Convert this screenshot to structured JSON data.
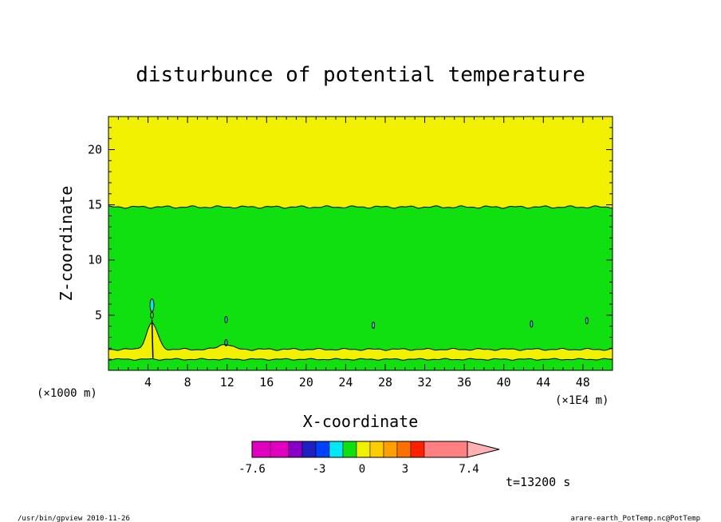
{
  "chart_data": {
    "type": "contour",
    "title": "disturbunce of potential temperature",
    "xlabel": "X-coordinate",
    "ylabel": "Z-coordinate",
    "x_unit_left": "(×1000 m)",
    "x_unit_right": "(×1E4 m)",
    "x_ticks": [
      "4",
      "8",
      "12",
      "16",
      "20",
      "24",
      "28",
      "32",
      "36",
      "40",
      "44",
      "48"
    ],
    "x_tick_values": [
      4,
      8,
      12,
      16,
      20,
      24,
      28,
      32,
      36,
      40,
      44,
      48
    ],
    "y_ticks": [
      "5",
      "10",
      "15",
      "20"
    ],
    "y_tick_values": [
      5,
      10,
      15,
      20
    ],
    "xlim": [
      0,
      51
    ],
    "ylim": [
      0,
      23
    ],
    "time_label": "t=13200 s",
    "colorbar": {
      "colors": [
        "#e000c0",
        "#e000c0",
        "#8800c8",
        "#2020c0",
        "#0040ff",
        "#00e8f8",
        "#10e010",
        "#f0f000",
        "#ffcc00",
        "#ffa000",
        "#ff7000",
        "#ff2000",
        "#ff8080"
      ],
      "tip_color": "#ffb0b0",
      "tick_labels": [
        "-7.6",
        "-3",
        "0",
        "3",
        "7.4"
      ]
    },
    "fields": {
      "upper_band_color": "#f0f000",
      "main_region_color": "#10e010",
      "lower_band_color": "#f0f000",
      "bottom_layer_color": "#10e010",
      "small_anomaly_color": "#00e8f8",
      "upper_boundary_z": 14.8,
      "lower_band_top_z": 1.9,
      "lower_band_bottom_z": 1.0,
      "peak_x": 4.4,
      "peak_z": 4.3
    }
  },
  "footer": {
    "left": "/usr/bin/gpview  2010-11-26",
    "right": "arare-earth_PotTemp.nc@PotTemp"
  }
}
